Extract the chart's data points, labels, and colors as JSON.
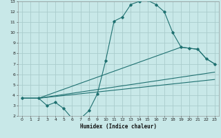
{
  "xlabel": "Humidex (Indice chaleur)",
  "background_color": "#c8e8e8",
  "grid_color": "#aacccc",
  "line_color": "#1e7070",
  "xlim": [
    -0.5,
    23.5
  ],
  "ylim": [
    2,
    13
  ],
  "xticks": [
    0,
    1,
    2,
    3,
    4,
    5,
    6,
    7,
    8,
    9,
    10,
    11,
    12,
    13,
    14,
    15,
    16,
    17,
    18,
    19,
    20,
    21,
    22,
    23
  ],
  "yticks": [
    2,
    3,
    4,
    5,
    6,
    7,
    8,
    9,
    10,
    11,
    12,
    13
  ],
  "line1_x": [
    0,
    2,
    3,
    4,
    5,
    6,
    7,
    8,
    9,
    10,
    11,
    12,
    13,
    14,
    15,
    16,
    17,
    18,
    19,
    20,
    21,
    22,
    23
  ],
  "line1_y": [
    3.7,
    3.7,
    3.0,
    3.3,
    2.7,
    1.75,
    1.75,
    2.5,
    4.1,
    7.3,
    11.1,
    11.5,
    12.7,
    13.0,
    13.1,
    12.7,
    12.0,
    10.0,
    8.6,
    8.5,
    8.4,
    7.5,
    7.0
  ],
  "line2_x": [
    0,
    2,
    23
  ],
  "line2_y": [
    3.7,
    3.7,
    6.2
  ],
  "line3_x": [
    0,
    2,
    19,
    20,
    21,
    22,
    23
  ],
  "line3_y": [
    3.7,
    3.7,
    8.6,
    8.5,
    8.4,
    7.5,
    7.0
  ],
  "line4_x": [
    0,
    2,
    23
  ],
  "line4_y": [
    3.7,
    3.7,
    5.5
  ]
}
